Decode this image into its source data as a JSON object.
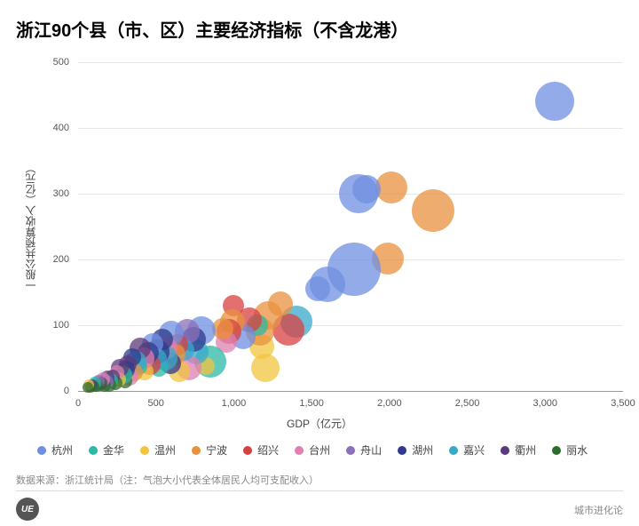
{
  "title": "浙江90个县（市、区）主要经济指标（不含龙港）",
  "xlabel": "GDP（亿元）",
  "ylabel": "一般公共预算收入（亿元）",
  "source": "数据来源：浙江统计局（注：气泡大小代表全体居民人均可支配收入）",
  "badge": "UE",
  "credit": "城市进化论",
  "chart": {
    "type": "scatter-bubble",
    "xlim": [
      0,
      3500
    ],
    "ylim": [
      0,
      500
    ],
    "xticks": [
      0,
      500,
      1000,
      1500,
      2000,
      2500,
      3000,
      3500
    ],
    "yticks": [
      0,
      100,
      200,
      300,
      400,
      500
    ],
    "xtick_labels": [
      "0",
      "500",
      "1,000",
      "1,500",
      "2,000",
      "2,500",
      "3,000",
      "3,500"
    ],
    "ytick_labels": [
      "0",
      "100",
      "200",
      "300",
      "400",
      "500"
    ],
    "grid_color": "#e8e8e8",
    "baseline_color": "#999999",
    "background": "#ffffff",
    "label_fontsize": 12,
    "tick_fontsize": 11,
    "bubble_opacity": 0.75,
    "categories": [
      {
        "name": "杭州",
        "color": "#6f8fe0"
      },
      {
        "name": "金华",
        "color": "#2bb8a4"
      },
      {
        "name": "温州",
        "color": "#f2c43f"
      },
      {
        "name": "宁波",
        "color": "#e8913f"
      },
      {
        "name": "绍兴",
        "color": "#d94040"
      },
      {
        "name": "台州",
        "color": "#e07fb0"
      },
      {
        "name": "舟山",
        "color": "#8b6fb8"
      },
      {
        "name": "湖州",
        "color": "#2e3a8c"
      },
      {
        "name": "嘉兴",
        "color": "#3aa8c9"
      },
      {
        "name": "衢州",
        "color": "#5a3a7a"
      },
      {
        "name": "丽水",
        "color": "#2e6b2e"
      }
    ],
    "points": [
      {
        "x": 3060,
        "y": 440,
        "r": 22,
        "cat": 0
      },
      {
        "x": 2280,
        "y": 275,
        "r": 24,
        "cat": 3
      },
      {
        "x": 2010,
        "y": 310,
        "r": 18,
        "cat": 3
      },
      {
        "x": 1990,
        "y": 202,
        "r": 18,
        "cat": 3
      },
      {
        "x": 1850,
        "y": 307,
        "r": 16,
        "cat": 0
      },
      {
        "x": 1800,
        "y": 300,
        "r": 22,
        "cat": 0
      },
      {
        "x": 1770,
        "y": 185,
        "r": 30,
        "cat": 0
      },
      {
        "x": 1600,
        "y": 162,
        "r": 20,
        "cat": 0
      },
      {
        "x": 1540,
        "y": 155,
        "r": 14,
        "cat": 0
      },
      {
        "x": 1400,
        "y": 105,
        "r": 18,
        "cat": 8
      },
      {
        "x": 1350,
        "y": 93,
        "r": 18,
        "cat": 4
      },
      {
        "x": 1300,
        "y": 132,
        "r": 14,
        "cat": 3
      },
      {
        "x": 1220,
        "y": 115,
        "r": 16,
        "cat": 3
      },
      {
        "x": 1180,
        "y": 68,
        "r": 14,
        "cat": 2
      },
      {
        "x": 1200,
        "y": 35,
        "r": 16,
        "cat": 2
      },
      {
        "x": 1170,
        "y": 90,
        "r": 16,
        "cat": 3
      },
      {
        "x": 1150,
        "y": 100,
        "r": 12,
        "cat": 1
      },
      {
        "x": 1100,
        "y": 108,
        "r": 14,
        "cat": 4
      },
      {
        "x": 1060,
        "y": 82,
        "r": 14,
        "cat": 0
      },
      {
        "x": 1000,
        "y": 130,
        "r": 12,
        "cat": 4
      },
      {
        "x": 990,
        "y": 105,
        "r": 14,
        "cat": 3
      },
      {
        "x": 970,
        "y": 90,
        "r": 14,
        "cat": 4
      },
      {
        "x": 950,
        "y": 75,
        "r": 12,
        "cat": 5
      },
      {
        "x": 930,
        "y": 95,
        "r": 12,
        "cat": 3
      },
      {
        "x": 850,
        "y": 45,
        "r": 18,
        "cat": 1
      },
      {
        "x": 820,
        "y": 38,
        "r": 10,
        "cat": 2
      },
      {
        "x": 790,
        "y": 92,
        "r": 16,
        "cat": 0
      },
      {
        "x": 760,
        "y": 60,
        "r": 14,
        "cat": 8
      },
      {
        "x": 740,
        "y": 78,
        "r": 14,
        "cat": 7
      },
      {
        "x": 710,
        "y": 35,
        "r": 14,
        "cat": 5
      },
      {
        "x": 700,
        "y": 90,
        "r": 14,
        "cat": 6
      },
      {
        "x": 680,
        "y": 62,
        "r": 12,
        "cat": 8
      },
      {
        "x": 650,
        "y": 30,
        "r": 12,
        "cat": 2
      },
      {
        "x": 640,
        "y": 70,
        "r": 12,
        "cat": 4
      },
      {
        "x": 620,
        "y": 55,
        "r": 12,
        "cat": 3
      },
      {
        "x": 600,
        "y": 88,
        "r": 14,
        "cat": 0
      },
      {
        "x": 590,
        "y": 42,
        "r": 12,
        "cat": 7
      },
      {
        "x": 570,
        "y": 65,
        "r": 12,
        "cat": 5
      },
      {
        "x": 560,
        "y": 50,
        "r": 14,
        "cat": 8
      },
      {
        "x": 540,
        "y": 78,
        "r": 12,
        "cat": 7
      },
      {
        "x": 520,
        "y": 35,
        "r": 10,
        "cat": 1
      },
      {
        "x": 510,
        "y": 60,
        "r": 14,
        "cat": 7
      },
      {
        "x": 500,
        "y": 48,
        "r": 12,
        "cat": 8
      },
      {
        "x": 480,
        "y": 72,
        "r": 12,
        "cat": 0
      },
      {
        "x": 460,
        "y": 40,
        "r": 12,
        "cat": 4
      },
      {
        "x": 450,
        "y": 58,
        "r": 12,
        "cat": 7
      },
      {
        "x": 430,
        "y": 30,
        "r": 10,
        "cat": 2
      },
      {
        "x": 420,
        "y": 50,
        "r": 12,
        "cat": 5
      },
      {
        "x": 400,
        "y": 65,
        "r": 12,
        "cat": 9
      },
      {
        "x": 390,
        "y": 38,
        "r": 10,
        "cat": 1
      },
      {
        "x": 370,
        "y": 45,
        "r": 12,
        "cat": 8
      },
      {
        "x": 360,
        "y": 28,
        "r": 10,
        "cat": 3
      },
      {
        "x": 350,
        "y": 52,
        "r": 10,
        "cat": 7
      },
      {
        "x": 330,
        "y": 22,
        "r": 10,
        "cat": 5
      },
      {
        "x": 320,
        "y": 40,
        "r": 10,
        "cat": 9
      },
      {
        "x": 310,
        "y": 32,
        "r": 10,
        "cat": 7
      },
      {
        "x": 300,
        "y": 15,
        "r": 8,
        "cat": 10
      },
      {
        "x": 290,
        "y": 25,
        "r": 10,
        "cat": 1
      },
      {
        "x": 270,
        "y": 35,
        "r": 10,
        "cat": 9
      },
      {
        "x": 260,
        "y": 18,
        "r": 8,
        "cat": 2
      },
      {
        "x": 250,
        "y": 28,
        "r": 8,
        "cat": 5
      },
      {
        "x": 240,
        "y": 12,
        "r": 8,
        "cat": 10
      },
      {
        "x": 220,
        "y": 22,
        "r": 8,
        "cat": 9
      },
      {
        "x": 210,
        "y": 16,
        "r": 8,
        "cat": 1
      },
      {
        "x": 200,
        "y": 10,
        "r": 8,
        "cat": 10
      },
      {
        "x": 190,
        "y": 20,
        "r": 8,
        "cat": 9
      },
      {
        "x": 180,
        "y": 14,
        "r": 8,
        "cat": 6
      },
      {
        "x": 170,
        "y": 8,
        "r": 7,
        "cat": 10
      },
      {
        "x": 160,
        "y": 18,
        "r": 8,
        "cat": 5
      },
      {
        "x": 150,
        "y": 12,
        "r": 7,
        "cat": 9
      },
      {
        "x": 140,
        "y": 10,
        "r": 7,
        "cat": 10
      },
      {
        "x": 130,
        "y": 15,
        "r": 7,
        "cat": 6
      },
      {
        "x": 120,
        "y": 8,
        "r": 7,
        "cat": 10
      },
      {
        "x": 110,
        "y": 12,
        "r": 7,
        "cat": 1
      },
      {
        "x": 100,
        "y": 7,
        "r": 6,
        "cat": 10
      },
      {
        "x": 90,
        "y": 10,
        "r": 6,
        "cat": 9
      },
      {
        "x": 80,
        "y": 6,
        "r": 6,
        "cat": 10
      },
      {
        "x": 70,
        "y": 9,
        "r": 6,
        "cat": 2
      },
      {
        "x": 60,
        "y": 5,
        "r": 6,
        "cat": 10
      }
    ]
  }
}
